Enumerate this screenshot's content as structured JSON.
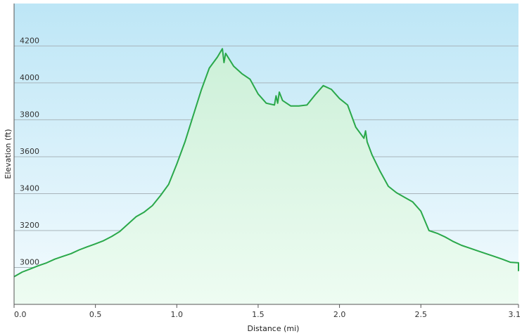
{
  "chart_data": {
    "type": "area",
    "xlabel": "Distance  (mi)",
    "ylabel": "Elevation (ft)",
    "xlim": [
      0,
      3.1
    ],
    "ylim": [
      2800,
      4430
    ],
    "grid": true,
    "x_ticks": [
      {
        "value": 0.0,
        "label": "0.0"
      },
      {
        "value": 0.5,
        "label": "0.5"
      },
      {
        "value": 1.0,
        "label": "1.0"
      },
      {
        "value": 1.5,
        "label": "1.5"
      },
      {
        "value": 2.0,
        "label": "2.0"
      },
      {
        "value": 2.5,
        "label": "2.5"
      },
      {
        "value": 3.1,
        "label": "3.1"
      }
    ],
    "y_ticks": [
      {
        "value": 3000,
        "label": "3000"
      },
      {
        "value": 3200,
        "label": "3200"
      },
      {
        "value": 3400,
        "label": "3400"
      },
      {
        "value": 3600,
        "label": "3600"
      },
      {
        "value": 3800,
        "label": "3800"
      },
      {
        "value": 4000,
        "label": "4000"
      },
      {
        "value": 4200,
        "label": "4200"
      }
    ],
    "colors": {
      "line": "#2aa84a",
      "fill_top": "#ccf0d8",
      "fill_bottom": "#eefcf2",
      "bg_top": "#bde6f6",
      "bg_bottom": "#f4fbfe",
      "grid": "#a8b4ba",
      "axis": "#555555"
    },
    "series": [
      {
        "points": [
          [
            0.0,
            2950
          ],
          [
            0.05,
            2975
          ],
          [
            0.1,
            2992
          ],
          [
            0.15,
            3010
          ],
          [
            0.2,
            3025
          ],
          [
            0.25,
            3045
          ],
          [
            0.3,
            3060
          ],
          [
            0.35,
            3075
          ],
          [
            0.4,
            3095
          ],
          [
            0.45,
            3112
          ],
          [
            0.5,
            3128
          ],
          [
            0.55,
            3145
          ],
          [
            0.6,
            3168
          ],
          [
            0.65,
            3195
          ],
          [
            0.7,
            3235
          ],
          [
            0.75,
            3275
          ],
          [
            0.8,
            3300
          ],
          [
            0.85,
            3335
          ],
          [
            0.9,
            3390
          ],
          [
            0.95,
            3450
          ],
          [
            1.0,
            3560
          ],
          [
            1.05,
            3680
          ],
          [
            1.1,
            3820
          ],
          [
            1.15,
            3960
          ],
          [
            1.2,
            4080
          ],
          [
            1.25,
            4140
          ],
          [
            1.28,
            4185
          ],
          [
            1.29,
            4110
          ],
          [
            1.3,
            4160
          ],
          [
            1.35,
            4090
          ],
          [
            1.4,
            4050
          ],
          [
            1.45,
            4020
          ],
          [
            1.5,
            3940
          ],
          [
            1.55,
            3890
          ],
          [
            1.6,
            3880
          ],
          [
            1.61,
            3930
          ],
          [
            1.62,
            3890
          ],
          [
            1.63,
            3950
          ],
          [
            1.65,
            3905
          ],
          [
            1.7,
            3875
          ],
          [
            1.75,
            3875
          ],
          [
            1.8,
            3880
          ],
          [
            1.85,
            3935
          ],
          [
            1.9,
            3985
          ],
          [
            1.95,
            3965
          ],
          [
            2.0,
            3915
          ],
          [
            2.05,
            3880
          ],
          [
            2.1,
            3760
          ],
          [
            2.15,
            3700
          ],
          [
            2.16,
            3740
          ],
          [
            2.17,
            3680
          ],
          [
            2.2,
            3610
          ],
          [
            2.25,
            3520
          ],
          [
            2.3,
            3440
          ],
          [
            2.35,
            3405
          ],
          [
            2.4,
            3380
          ],
          [
            2.45,
            3355
          ],
          [
            2.5,
            3305
          ],
          [
            2.55,
            3200
          ],
          [
            2.6,
            3185
          ],
          [
            2.65,
            3165
          ],
          [
            2.7,
            3140
          ],
          [
            2.75,
            3120
          ],
          [
            2.8,
            3105
          ],
          [
            2.85,
            3090
          ],
          [
            2.9,
            3075
          ],
          [
            2.95,
            3060
          ],
          [
            3.0,
            3045
          ],
          [
            3.05,
            3028
          ],
          [
            3.1,
            3025
          ],
          [
            3.1,
            2980
          ]
        ]
      }
    ]
  }
}
